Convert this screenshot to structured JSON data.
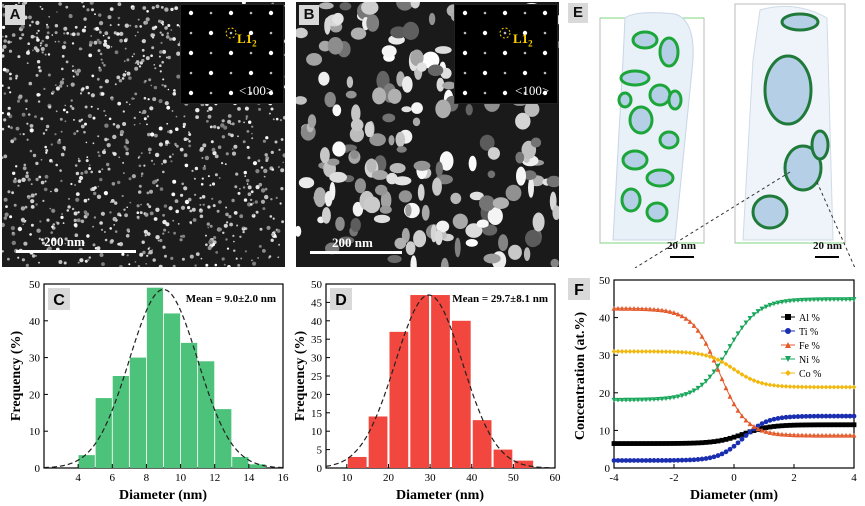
{
  "panels": {
    "A": {
      "label": "A",
      "scale_bar": "200 nm",
      "inset_spot": "L1",
      "inset_spot_sub": "2",
      "inset_zone": "<100>"
    },
    "B": {
      "label": "B",
      "scale_bar": "200 nm",
      "inset_spot": "L1",
      "inset_spot_sub": "2",
      "inset_zone": "<100>"
    },
    "E": {
      "label": "E",
      "scale_left": "20 nm",
      "scale_right": "20 nm"
    }
  },
  "chart_data": [
    {
      "id": "C",
      "type": "bar",
      "label": "C",
      "annotation": "Mean = 9.0±2.0 nm",
      "xlabel": "Diameter (nm)",
      "ylabel": "Frequency (%)",
      "xlim": [
        2,
        16
      ],
      "ylim": [
        0,
        50
      ],
      "xticks": [
        4,
        6,
        8,
        10,
        12,
        14,
        16
      ],
      "yticks": [
        0,
        10,
        20,
        30,
        40,
        50
      ],
      "bar_width": 0.95,
      "x": [
        4.5,
        5.5,
        6.5,
        7.5,
        8.5,
        9.5,
        10.5,
        11.5,
        12.5,
        13.5,
        14.5
      ],
      "values": [
        3.5,
        19,
        25,
        30,
        49,
        42,
        34,
        29,
        16,
        3,
        1
      ],
      "fit": {
        "mean": 9.0,
        "sd": 2.0,
        "peak": 48.5
      },
      "color": "#4cc27a"
    },
    {
      "id": "D",
      "type": "bar",
      "label": "D",
      "annotation": "Mean = 29.7±8.1 nm",
      "xlabel": "Diameter (nm)",
      "ylabel": "Frequency (%)",
      "xlim": [
        5,
        60
      ],
      "ylim": [
        0,
        50
      ],
      "xticks": [
        10,
        20,
        30,
        40,
        50,
        60
      ],
      "yticks": [
        0,
        5,
        10,
        15,
        20,
        25,
        30,
        35,
        40,
        45,
        50
      ],
      "bar_width": 4.5,
      "x": [
        12.5,
        17.5,
        22.5,
        27.5,
        32.5,
        37.5,
        42.5,
        47.5,
        52.5
      ],
      "values": [
        3,
        14,
        37,
        47,
        47,
        40,
        13,
        5,
        2
      ],
      "fit": {
        "mean": 29.7,
        "sd": 8.1,
        "peak": 47
      },
      "color": "#f2473f"
    },
    {
      "id": "F",
      "type": "line",
      "label": "F",
      "xlabel": "Diameter (nm)",
      "ylabel": "Concentration (at.%)",
      "xlim": [
        -4,
        4
      ],
      "ylim": [
        0,
        50
      ],
      "xticks": [
        -4,
        -2,
        0,
        2,
        4
      ],
      "yticks": [
        0,
        10,
        20,
        30,
        40,
        50
      ],
      "legend_position": "right",
      "series": [
        {
          "name": "Al %",
          "left": 6.5,
          "right": 11.5,
          "center": 0.3,
          "width": 0.45,
          "color": "#000000",
          "marker": "square"
        },
        {
          "name": "Ti %",
          "left": 2.0,
          "right": 13.8,
          "center": 0.3,
          "width": 0.4,
          "color": "#1a2fb0",
          "marker": "circle"
        },
        {
          "name": "Fe %",
          "left": 42.5,
          "right": 8.7,
          "center": -0.5,
          "width": 0.45,
          "color": "#e35a2b",
          "marker": "triangle-up"
        },
        {
          "name": "Ni %",
          "left": 18.0,
          "right": 44.8,
          "center": -0.2,
          "width": 0.5,
          "color": "#18a65a",
          "marker": "triangle-down"
        },
        {
          "name": "Co %",
          "left": 31.0,
          "right": 21.5,
          "center": 0.0,
          "width": 0.45,
          "color": "#f2b80e",
          "marker": "diamond"
        }
      ]
    }
  ]
}
